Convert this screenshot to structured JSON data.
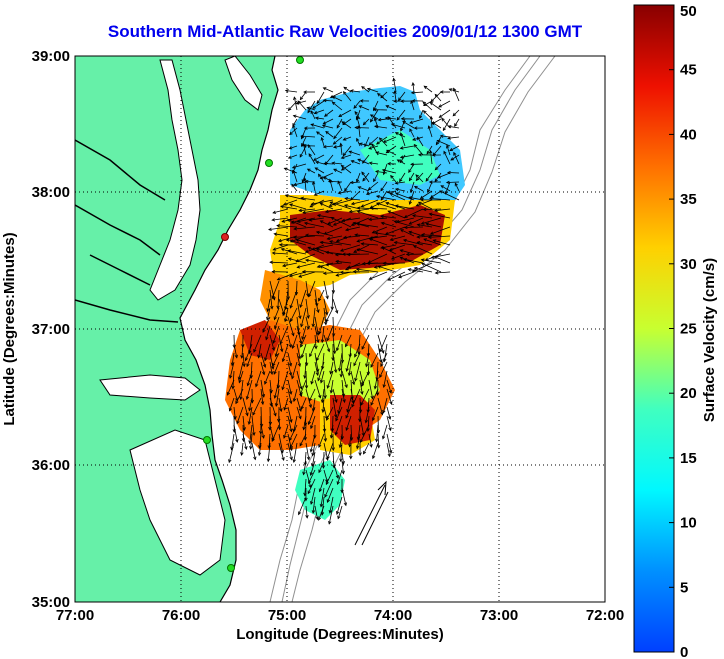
{
  "title": "Southern Mid-Atlantic Raw Velocities 2009/01/12 1300 GMT",
  "map": {
    "xlabel": "Longitude (Degrees:Minutes)",
    "ylabel": "Latitude (Degrees:Minutes)",
    "lon_range": [
      -77,
      -72
    ],
    "lat_range": [
      35,
      39
    ],
    "lon_ticks": [
      {
        "value": -77,
        "label": "77:00"
      },
      {
        "value": -76,
        "label": "76:00"
      },
      {
        "value": -75,
        "label": "75:00"
      },
      {
        "value": -74,
        "label": "74:00"
      },
      {
        "value": -73,
        "label": "73:00"
      },
      {
        "value": -72,
        "label": "72:00"
      }
    ],
    "lat_ticks": [
      {
        "value": 35,
        "label": "35:00"
      },
      {
        "value": 36,
        "label": "36:00"
      },
      {
        "value": 37,
        "label": "37:00"
      },
      {
        "value": 38,
        "label": "38:00"
      },
      {
        "value": 39,
        "label": "39:00"
      }
    ],
    "grid": "dotted",
    "colors": {
      "land": "#66f0a8",
      "water": "#ffffff",
      "contours": "#909090",
      "coastline": "#000000",
      "stations": "#22dd22",
      "station_highlight": "#dd2222"
    }
  },
  "colorbar": {
    "label": "Surface Velocity (cm/s)",
    "range": [
      0,
      50
    ],
    "ticks": [
      "0",
      "5",
      "10",
      "15",
      "20",
      "25",
      "30",
      "35",
      "40",
      "45",
      "50"
    ],
    "colormap": "jet"
  },
  "stations": [
    {
      "lon": -74.92,
      "lat": 39.0,
      "color": "green"
    },
    {
      "lon": -75.1,
      "lat": 38.22,
      "color": "green"
    },
    {
      "lon": -75.55,
      "lat": 37.7,
      "color": "red"
    },
    {
      "lon": -75.7,
      "lat": 36.2,
      "color": "green"
    },
    {
      "lon": -75.5,
      "lat": 35.25,
      "color": "green"
    }
  ],
  "reference_arrow": {
    "lon_start": -74.28,
    "lat_start": 35.57,
    "speed_cm_s": 50
  }
}
